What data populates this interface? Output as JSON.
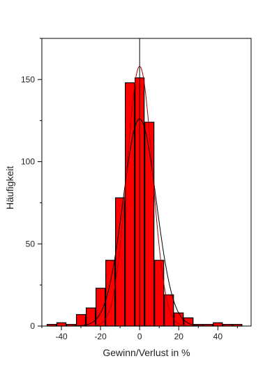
{
  "chart_data": {
    "type": "bar",
    "xlabel": "Gewinn/Verlust in %",
    "ylabel": "Häufigkeit",
    "xlim": [
      -50,
      57
    ],
    "ylim": [
      0,
      175
    ],
    "x_ticks": [
      -40,
      -20,
      0,
      20,
      40
    ],
    "y_ticks": [
      0,
      50,
      100,
      150
    ],
    "bin_width": 5,
    "bars": [
      {
        "x": -45,
        "value": 1
      },
      {
        "x": -40,
        "value": 2
      },
      {
        "x": -35,
        "value": 1
      },
      {
        "x": -30,
        "value": 7
      },
      {
        "x": -25,
        "value": 11
      },
      {
        "x": -20,
        "value": 23
      },
      {
        "x": -15,
        "value": 40
      },
      {
        "x": -10,
        "value": 78
      },
      {
        "x": -5,
        "value": 148
      },
      {
        "x": 0,
        "value": 151
      },
      {
        "x": 5,
        "value": 124
      },
      {
        "x": 10,
        "value": 40
      },
      {
        "x": 15,
        "value": 19
      },
      {
        "x": 20,
        "value": 8
      },
      {
        "x": 25,
        "value": 5
      },
      {
        "x": 30,
        "value": 1
      },
      {
        "x": 35,
        "value": 1
      },
      {
        "x": 40,
        "value": 2
      },
      {
        "x": 45,
        "value": 1
      },
      {
        "x": 50,
        "value": 1
      }
    ],
    "bar_color": "#ff0000",
    "curves": [
      {
        "color": "#000000",
        "peak": 126,
        "center": 0,
        "sigma": 8.5
      },
      {
        "color": "#aa0000",
        "peak": 158,
        "center": 0,
        "sigma": 6.5
      }
    ],
    "zero_line": true,
    "grid": false
  }
}
